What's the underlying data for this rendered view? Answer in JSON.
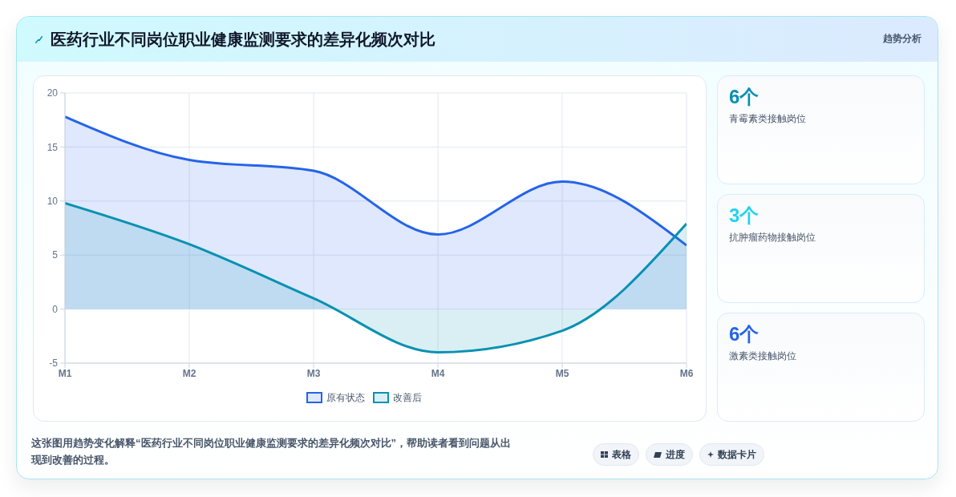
{
  "chart_data": [
    {
      "type": "area",
      "title": "医药行业不同岗位职业健康监测要求的差异化频次对比",
      "categories": [
        "M1",
        "M2",
        "M3",
        "M4",
        "M5",
        "M6"
      ],
      "series": [
        {
          "name": "原有状态",
          "color": "#2563eb",
          "values": [
            17.8,
            13.8,
            12.8,
            6.9,
            11.8,
            5.9
          ]
        },
        {
          "name": "改善后",
          "color": "#0891b2",
          "values": [
            9.8,
            6,
            1,
            -4,
            -2,
            7.9
          ]
        }
      ],
      "ylim": [
        -5,
        20
      ],
      "yticks": [
        -5,
        0,
        5,
        10,
        15,
        20
      ],
      "grid": true,
      "legend": "bottom",
      "annotations": [
        "趋势分析",
        "这张图用趋势变化解释“医药行业不同岗位职业健康监测要求的差异化频次对比”，帮助读者看到问题从出现到改善的过程。",
        "表格",
        "进度",
        "数据卡片"
      ]
    },
    {
      "type": "other",
      "categories": [
        "青霉素类接触岗位",
        "抗肿瘤药物接触岗位",
        "激素类接触岗位"
      ],
      "value_labels": [
        "6个",
        "3个",
        "6个"
      ]
    }
  ]
}
